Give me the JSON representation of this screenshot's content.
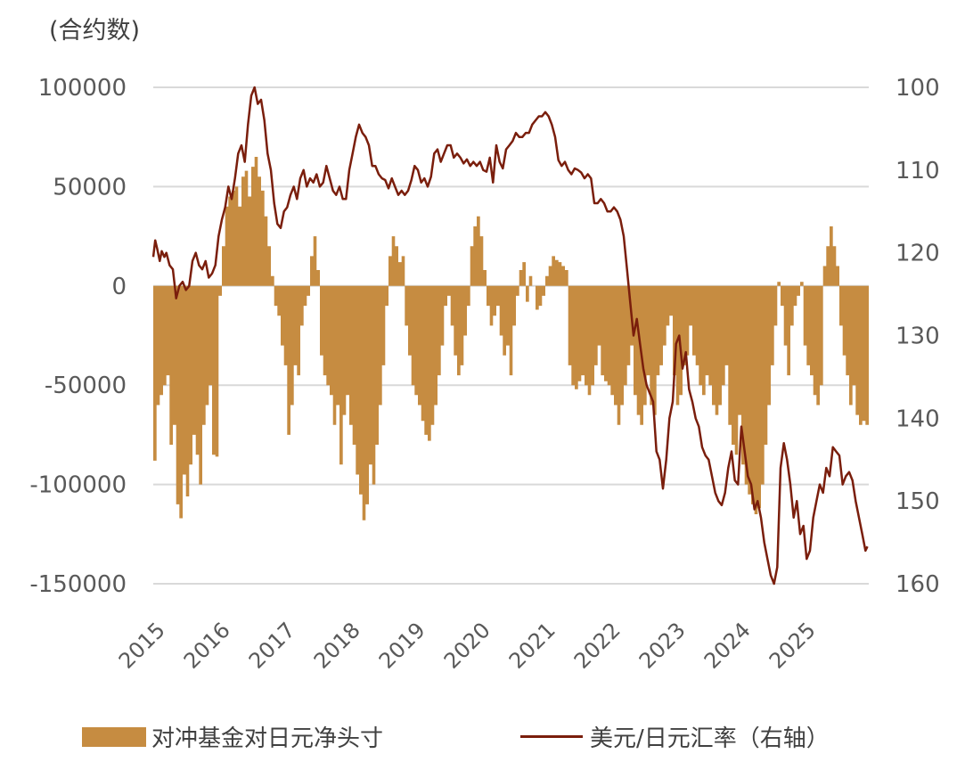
{
  "chart_data": {
    "type": "bar+line",
    "title": "",
    "left_axis_unit": "(合约数)",
    "left_axis": {
      "ticks": [
        100000,
        50000,
        0,
        -50000,
        -100000,
        -150000
      ],
      "range": [
        -150000,
        100000
      ]
    },
    "right_axis": {
      "ticks": [
        100,
        110,
        120,
        130,
        140,
        150,
        160
      ],
      "range": [
        100,
        160
      ],
      "inverted": true
    },
    "x_ticks": [
      "2015",
      "2016",
      "2017",
      "2018",
      "2019",
      "2020",
      "2021",
      "2022",
      "2023",
      "2024",
      "2025"
    ],
    "x_range": [
      2015.0,
      2025.95
    ],
    "grid": true,
    "legend_position": "bottom",
    "series": [
      {
        "name": "对冲基金对日元净头寸",
        "type": "bar",
        "axis": "left",
        "color": "#C68C41",
        "x": [
          2015.0,
          2015.05,
          2015.1,
          2015.15,
          2015.2,
          2015.25,
          2015.3,
          2015.35,
          2015.4,
          2015.45,
          2015.5,
          2015.55,
          2015.6,
          2015.65,
          2015.7,
          2015.75,
          2015.8,
          2015.85,
          2015.9,
          2015.95,
          2016.0,
          2016.05,
          2016.1,
          2016.15,
          2016.2,
          2016.25,
          2016.3,
          2016.35,
          2016.4,
          2016.45,
          2016.5,
          2016.55,
          2016.6,
          2016.65,
          2016.7,
          2016.75,
          2016.8,
          2016.85,
          2016.9,
          2016.95,
          2017.0,
          2017.05,
          2017.1,
          2017.15,
          2017.2,
          2017.25,
          2017.3,
          2017.35,
          2017.4,
          2017.45,
          2017.5,
          2017.55,
          2017.6,
          2017.65,
          2017.7,
          2017.75,
          2017.8,
          2017.85,
          2017.9,
          2017.95,
          2018.0,
          2018.05,
          2018.1,
          2018.15,
          2018.2,
          2018.25,
          2018.3,
          2018.35,
          2018.4,
          2018.45,
          2018.5,
          2018.55,
          2018.6,
          2018.65,
          2018.7,
          2018.75,
          2018.8,
          2018.85,
          2018.9,
          2018.95,
          2019.0,
          2019.05,
          2019.1,
          2019.15,
          2019.2,
          2019.25,
          2019.3,
          2019.35,
          2019.4,
          2019.45,
          2019.5,
          2019.55,
          2019.6,
          2019.65,
          2019.7,
          2019.75,
          2019.8,
          2019.85,
          2019.9,
          2019.95,
          2020.0,
          2020.05,
          2020.1,
          2020.15,
          2020.2,
          2020.25,
          2020.3,
          2020.35,
          2020.4,
          2020.45,
          2020.5,
          2020.55,
          2020.6,
          2020.65,
          2020.7,
          2020.75,
          2020.8,
          2020.85,
          2020.9,
          2020.95,
          2021.0,
          2021.05,
          2021.1,
          2021.15,
          2021.2,
          2021.25,
          2021.3,
          2021.35,
          2021.4,
          2021.45,
          2021.5,
          2021.55,
          2021.6,
          2021.65,
          2021.7,
          2021.75,
          2021.8,
          2021.85,
          2021.9,
          2021.95,
          2022.0,
          2022.05,
          2022.1,
          2022.15,
          2022.2,
          2022.25,
          2022.3,
          2022.35,
          2022.4,
          2022.45,
          2022.5,
          2022.55,
          2022.6,
          2022.65,
          2022.7,
          2022.75,
          2022.8,
          2022.85,
          2022.9,
          2022.95,
          2023.0,
          2023.05,
          2023.1,
          2023.15,
          2023.2,
          2023.25,
          2023.3,
          2023.35,
          2023.4,
          2023.45,
          2023.5,
          2023.55,
          2023.6,
          2023.65,
          2023.7,
          2023.75,
          2023.8,
          2023.85,
          2023.9,
          2023.95,
          2024.0,
          2024.05,
          2024.1,
          2024.15,
          2024.2,
          2024.25,
          2024.3,
          2024.35,
          2024.4,
          2024.45,
          2024.5,
          2024.55,
          2024.6,
          2024.65,
          2024.7,
          2024.75,
          2024.8,
          2024.85,
          2024.9,
          2024.95,
          2025.0,
          2025.05,
          2025.1,
          2025.15,
          2025.2,
          2025.25,
          2025.3,
          2025.35,
          2025.4,
          2025.45,
          2025.5,
          2025.55,
          2025.6,
          2025.65,
          2025.7,
          2025.75,
          2025.8,
          2025.85,
          2025.9
        ],
        "values": [
          -88000,
          -60000,
          -55000,
          -50000,
          -45000,
          -80000,
          -70000,
          -110000,
          -117000,
          -95000,
          -106000,
          -90000,
          -75000,
          -85000,
          -100000,
          -70000,
          -60000,
          -50000,
          -85000,
          -86000,
          -5000,
          20000,
          40000,
          45000,
          48000,
          50000,
          40000,
          55000,
          58000,
          45000,
          60000,
          65000,
          55000,
          48000,
          35000,
          20000,
          5000,
          -10000,
          -15000,
          -30000,
          -40000,
          -75000,
          -60000,
          -40000,
          -45000,
          -20000,
          -10000,
          -5000,
          15000,
          25000,
          8000,
          -35000,
          -45000,
          -50000,
          -55000,
          -70000,
          -60000,
          -90000,
          -65000,
          -55000,
          -70000,
          -80000,
          -95000,
          -105000,
          -118000,
          -110000,
          -90000,
          -100000,
          -80000,
          -60000,
          -40000,
          -10000,
          15000,
          25000,
          20000,
          12000,
          15000,
          -20000,
          -35000,
          -50000,
          -55000,
          -60000,
          -68000,
          -75000,
          -78000,
          -70000,
          -60000,
          -45000,
          -30000,
          -10000,
          -5000,
          -20000,
          -35000,
          -45000,
          -40000,
          -25000,
          -10000,
          20000,
          30000,
          35000,
          25000,
          8000,
          -10000,
          -20000,
          -15000,
          -10000,
          -25000,
          -35000,
          -30000,
          -45000,
          -20000,
          -5000,
          8000,
          12000,
          -8000,
          5000,
          0,
          -12000,
          -10000,
          -5000,
          5000,
          10000,
          15000,
          13000,
          12000,
          10000,
          8000,
          -40000,
          -50000,
          -52000,
          -48000,
          -45000,
          -50000,
          -55000,
          -50000,
          -40000,
          -30000,
          -45000,
          -48000,
          -50000,
          -55000,
          -60000,
          -70000,
          -60000,
          -50000,
          -40000,
          -30000,
          -55000,
          -65000,
          -70000,
          -60000,
          -45000,
          -60000,
          -65000,
          -45000,
          -40000,
          -30000,
          -20000,
          -15000,
          -45000,
          -60000,
          -55000,
          -40000,
          -35000,
          -20000,
          -35000,
          -40000,
          -50000,
          -55000,
          -45000,
          -50000,
          -60000,
          -65000,
          -60000,
          -50000,
          -40000,
          -70000,
          -80000,
          -85000,
          -65000,
          -90000,
          -100000,
          -105000,
          -110000,
          -115000,
          -112000,
          -100000,
          -80000,
          -60000,
          -40000,
          -20000,
          2000,
          -10000,
          -30000,
          -45000,
          -20000,
          -10000,
          -5000,
          2000,
          -30000,
          -40000,
          -45000,
          -55000,
          -60000,
          -50000,
          10000,
          20000,
          30000,
          20000,
          10000,
          -20000,
          -35000,
          -45000,
          -60000,
          -50000,
          -65000,
          -70000,
          -68000,
          -70000
        ]
      },
      {
        "name": "美元/日元汇率（右轴）",
        "type": "line",
        "axis": "right",
        "color": "#7A1E0C",
        "x": [
          2015.0,
          2015.03,
          2015.06,
          2015.1,
          2015.13,
          2015.17,
          2015.2,
          2015.25,
          2015.3,
          2015.35,
          2015.4,
          2015.45,
          2015.5,
          2015.55,
          2015.6,
          2015.65,
          2015.7,
          2015.75,
          2015.8,
          2015.85,
          2015.9,
          2015.95,
          2016.0,
          2016.05,
          2016.1,
          2016.15,
          2016.2,
          2016.25,
          2016.3,
          2016.35,
          2016.4,
          2016.45,
          2016.5,
          2016.55,
          2016.6,
          2016.65,
          2016.7,
          2016.75,
          2016.8,
          2016.85,
          2016.9,
          2016.95,
          2017.0,
          2017.05,
          2017.1,
          2017.15,
          2017.2,
          2017.25,
          2017.3,
          2017.35,
          2017.4,
          2017.45,
          2017.5,
          2017.55,
          2017.6,
          2017.65,
          2017.7,
          2017.75,
          2017.8,
          2017.85,
          2017.9,
          2017.95,
          2018.0,
          2018.05,
          2018.1,
          2018.15,
          2018.2,
          2018.25,
          2018.3,
          2018.35,
          2018.4,
          2018.45,
          2018.5,
          2018.55,
          2018.6,
          2018.65,
          2018.7,
          2018.75,
          2018.8,
          2018.85,
          2018.9,
          2018.95,
          2019.0,
          2019.05,
          2019.1,
          2019.15,
          2019.2,
          2019.25,
          2019.3,
          2019.35,
          2019.4,
          2019.45,
          2019.5,
          2019.55,
          2019.6,
          2019.65,
          2019.7,
          2019.75,
          2019.8,
          2019.85,
          2019.9,
          2019.95,
          2020.0,
          2020.05,
          2020.1,
          2020.15,
          2020.2,
          2020.25,
          2020.3,
          2020.35,
          2020.4,
          2020.45,
          2020.5,
          2020.55,
          2020.6,
          2020.65,
          2020.7,
          2020.75,
          2020.8,
          2020.85,
          2020.9,
          2020.95,
          2021.0,
          2021.05,
          2021.1,
          2021.15,
          2021.2,
          2021.25,
          2021.3,
          2021.35,
          2021.4,
          2021.45,
          2021.5,
          2021.55,
          2021.6,
          2021.65,
          2021.7,
          2021.75,
          2021.8,
          2021.85,
          2021.9,
          2021.95,
          2022.0,
          2022.05,
          2022.1,
          2022.15,
          2022.2,
          2022.25,
          2022.3,
          2022.35,
          2022.4,
          2022.45,
          2022.5,
          2022.55,
          2022.6,
          2022.65,
          2022.7,
          2022.75,
          2022.8,
          2022.85,
          2022.9,
          2022.95,
          2023.0,
          2023.05,
          2023.1,
          2023.15,
          2023.2,
          2023.25,
          2023.3,
          2023.35,
          2023.4,
          2023.45,
          2023.5,
          2023.55,
          2023.6,
          2023.65,
          2023.7,
          2023.75,
          2023.8,
          2023.85,
          2023.9,
          2023.95,
          2024.0,
          2024.05,
          2024.1,
          2024.15,
          2024.2,
          2024.25,
          2024.3,
          2024.35,
          2024.4,
          2024.45,
          2024.5,
          2024.55,
          2024.6,
          2024.65,
          2024.7,
          2024.75,
          2024.8,
          2024.85,
          2024.9,
          2024.95,
          2025.0,
          2025.05,
          2025.1,
          2025.15,
          2025.2,
          2025.25,
          2025.3,
          2025.35,
          2025.4,
          2025.45,
          2025.5,
          2025.55,
          2025.6,
          2025.65,
          2025.7,
          2025.75,
          2025.8,
          2025.85,
          2025.9,
          2025.93
        ],
        "values": [
          120.5,
          118.5,
          119.5,
          121,
          119.8,
          120.5,
          120,
          121.5,
          122,
          125.5,
          124,
          123.5,
          124.5,
          124,
          121,
          120,
          121.5,
          122,
          121,
          123,
          122.5,
          121.5,
          118,
          116,
          114.5,
          112,
          113.5,
          111,
          108,
          107,
          109,
          104.5,
          101,
          100,
          102,
          101.5,
          104,
          108,
          110,
          114,
          116.5,
          117,
          115,
          114.5,
          113,
          112,
          113.5,
          111,
          110,
          112,
          111,
          111.5,
          110.5,
          112,
          111.5,
          109.5,
          111,
          112.5,
          113,
          112,
          113.5,
          113.5,
          110,
          108,
          106,
          104.5,
          105.5,
          106,
          107,
          109.5,
          109.5,
          110.5,
          111,
          111.2,
          112.2,
          111,
          112,
          113,
          112.5,
          113,
          112.5,
          111.2,
          109.5,
          110,
          111.5,
          111,
          112,
          110.8,
          108,
          107.5,
          109,
          108,
          107,
          107,
          108.5,
          108,
          108.5,
          109.2,
          108.7,
          109.5,
          109,
          109.5,
          109,
          110,
          110.2,
          108.5,
          111.5,
          107,
          109,
          109.8,
          107.5,
          107,
          106.5,
          105.5,
          106,
          106,
          105.5,
          105.5,
          104.5,
          104,
          103.5,
          103.5,
          103,
          103.5,
          104.5,
          106,
          108.8,
          109.5,
          109,
          110,
          110.5,
          109.8,
          110,
          110.3,
          111,
          110.5,
          111,
          114,
          114,
          113.5,
          114,
          115,
          115,
          114.5,
          115,
          116,
          118,
          122,
          126,
          130,
          128,
          131,
          134,
          136,
          137,
          138,
          144,
          145,
          148.5,
          145,
          140,
          138,
          131,
          130,
          134,
          132,
          136.5,
          138,
          140,
          141,
          143.5,
          144.5,
          145,
          147,
          149,
          150,
          150.5,
          149,
          146,
          144,
          147.5,
          148,
          141,
          144,
          147,
          148,
          151,
          150,
          152,
          155,
          157,
          159,
          160,
          158,
          146,
          143,
          145,
          148,
          152,
          150,
          154,
          153,
          157,
          156,
          152,
          150,
          148,
          149,
          146,
          147,
          143.5,
          144,
          144.5,
          148,
          147,
          146.5,
          147.5,
          150,
          152,
          154,
          156,
          155.5
        ]
      }
    ]
  },
  "chart": {
    "unit_label": "(合约数)",
    "left_ticks": [
      "100000",
      "50000",
      "0",
      "-50000",
      "-100000",
      "-150000"
    ],
    "right_ticks": [
      "100",
      "110",
      "120",
      "130",
      "140",
      "150",
      "160"
    ],
    "x_ticks": [
      "2015",
      "2016",
      "2017",
      "2018",
      "2019",
      "2020",
      "2021",
      "2022",
      "2023",
      "2024",
      "2025"
    ]
  },
  "legend": {
    "bar_label": "对冲基金对日元净头寸",
    "line_label": "美元/日元汇率（右轴）"
  }
}
